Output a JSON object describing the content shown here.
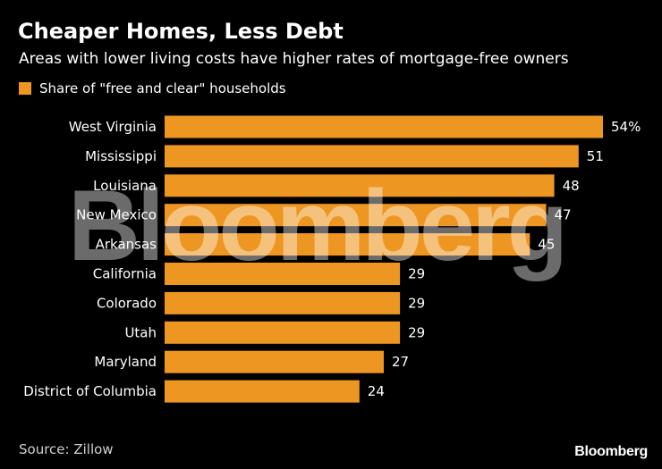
{
  "header": {
    "title": "Cheaper Homes, Less Debt",
    "subtitle": "Areas with lower living costs have higher rates of mortgage-free owners"
  },
  "legend": {
    "label": "Share of \"free and clear\" households",
    "color": "#ee9622"
  },
  "footer": {
    "source": "Source: Zillow",
    "logo": "Bloomberg"
  },
  "watermark": {
    "text": "Bloomberg"
  },
  "chart_data": {
    "type": "bar",
    "orientation": "horizontal",
    "title": "Cheaper Homes, Less Debt",
    "subtitle": "Areas with lower living costs have higher rates of mortgage-free owners",
    "xlabel": "",
    "ylabel": "",
    "categories": [
      "West Virginia",
      "Mississippi",
      "Louisiana",
      "New Mexico",
      "Arkansas",
      "California",
      "Colorado",
      "Utah",
      "Maryland",
      "District of Columbia"
    ],
    "series": [
      {
        "name": "Share of \"free and clear\" households",
        "values": [
          54,
          51,
          48,
          47,
          45,
          29,
          29,
          29,
          27,
          24
        ]
      }
    ],
    "value_labels": [
      "54%",
      "51",
      "48",
      "47",
      "45",
      "29",
      "29",
      "29",
      "27",
      "24"
    ],
    "xlim": [
      0,
      54
    ],
    "grid": false,
    "legend_position": "top-left",
    "bar_color": "#ee9622",
    "background": "#000000"
  }
}
